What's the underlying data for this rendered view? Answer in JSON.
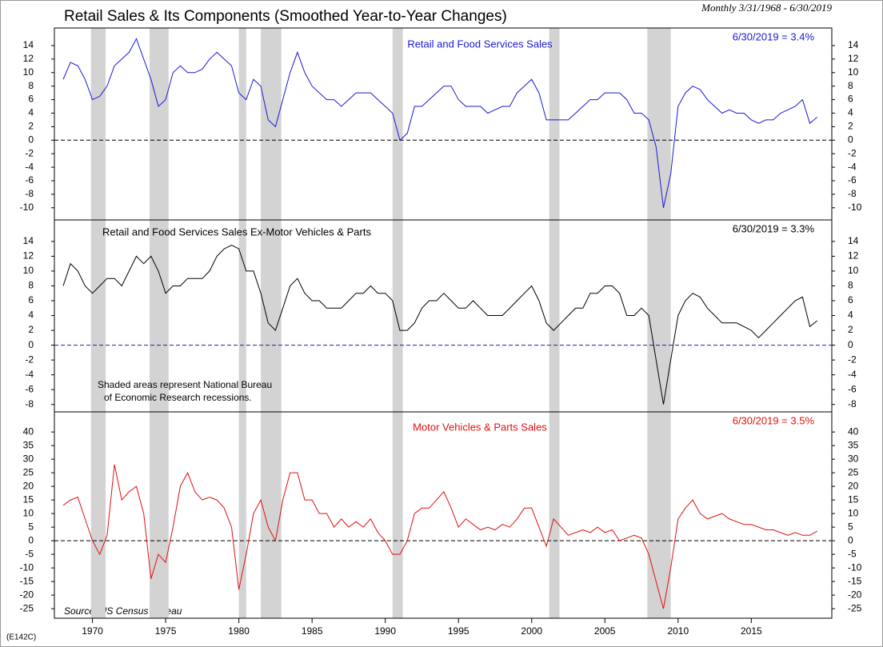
{
  "title": "Retail Sales & Its Components (Smoothed Year-to-Year Changes)",
  "subtitle": "Monthly 3/31/1968 - 6/30/2019",
  "source": "Source: US Census Bureau",
  "code": "(E142C)",
  "xlim": [
    1967.4,
    2020.5
  ],
  "xticks": [
    1970,
    1975,
    1980,
    1985,
    1990,
    1995,
    2000,
    2005,
    2010,
    2015
  ],
  "recession_color": "#d3d3d3",
  "recessions": [
    [
      1969.9,
      1970.9
    ],
    [
      1973.9,
      1975.2
    ],
    [
      1980.0,
      1980.5
    ],
    [
      1981.5,
      1982.9
    ],
    [
      1990.5,
      1991.2
    ],
    [
      2001.2,
      2001.9
    ],
    [
      2007.9,
      2009.5
    ]
  ],
  "chart_data": [
    {
      "type": "line",
      "annotation": "6/30/2019 = 3.4%",
      "zero_line_color": "#000000",
      "ylim": [
        -11.8,
        16.6
      ],
      "yticks": [
        -10,
        -8,
        -6,
        -4,
        -2,
        0,
        2,
        4,
        6,
        8,
        10,
        12,
        14
      ],
      "x": [
        1968,
        1968.5,
        1969,
        1969.5,
        1970,
        1970.5,
        1971,
        1971.5,
        1972,
        1972.5,
        1973,
        1973.5,
        1974,
        1974.5,
        1975,
        1975.5,
        1976,
        1976.5,
        1977,
        1977.5,
        1978,
        1978.5,
        1979,
        1979.5,
        1980,
        1980.5,
        1981,
        1981.5,
        1982,
        1982.5,
        1983,
        1983.5,
        1984,
        1984.5,
        1985,
        1985.5,
        1986,
        1986.5,
        1987,
        1987.5,
        1988,
        1988.5,
        1989,
        1989.5,
        1990,
        1990.5,
        1991,
        1991.5,
        1992,
        1992.5,
        1993,
        1993.5,
        1994,
        1994.5,
        1995,
        1995.5,
        1996,
        1996.5,
        1997,
        1997.5,
        1998,
        1998.5,
        1999,
        1999.5,
        2000,
        2000.5,
        2001,
        2001.5,
        2002,
        2002.5,
        2003,
        2003.5,
        2004,
        2004.5,
        2005,
        2005.5,
        2006,
        2006.5,
        2007,
        2007.5,
        2008,
        2008.5,
        2009,
        2009.5,
        2010,
        2010.5,
        2011,
        2011.5,
        2012,
        2012.5,
        2013,
        2013.5,
        2014,
        2014.5,
        2015,
        2015.5,
        2016,
        2016.5,
        2017,
        2017.5,
        2018,
        2018.5,
        2019,
        2019.5
      ],
      "series": [
        {
          "name": "Retail and Food Services Sales",
          "color": "#1a1ad6",
          "values": [
            9,
            11.5,
            11,
            9,
            6,
            6.5,
            8,
            11,
            12,
            13,
            15,
            12,
            9,
            5,
            6,
            10,
            11,
            10,
            10,
            10.5,
            12,
            13,
            12,
            11,
            7,
            6,
            9,
            8,
            3,
            2,
            6,
            10,
            13,
            10,
            8,
            7,
            6,
            6,
            5,
            6,
            7,
            7,
            7,
            6,
            5,
            4,
            0,
            1,
            5,
            5,
            6,
            7,
            8,
            8,
            6,
            5,
            5,
            5,
            4,
            4.5,
            5,
            5,
            7,
            8,
            9,
            7,
            3,
            3,
            3,
            3,
            4,
            5,
            6,
            6,
            7,
            7,
            7,
            6,
            4,
            4,
            3,
            -1,
            -10,
            -5,
            5,
            7,
            8,
            7.5,
            6,
            5,
            4,
            4.5,
            4,
            4,
            3,
            2.5,
            3,
            3,
            4,
            4.5,
            5,
            6,
            2.5,
            3.4
          ]
        }
      ]
    },
    {
      "type": "line",
      "annotation": "6/30/2019 = 3.3%",
      "zero_line_color": "#2020b0",
      "note": [
        "Shaded areas represent National Bureau",
        "of Economic Research recessions."
      ],
      "ylim": [
        -9,
        16.9
      ],
      "yticks": [
        -8,
        -6,
        -4,
        -2,
        0,
        2,
        4,
        6,
        8,
        10,
        12,
        14
      ],
      "x": [
        1968,
        1968.5,
        1969,
        1969.5,
        1970,
        1970.5,
        1971,
        1971.5,
        1972,
        1972.5,
        1973,
        1973.5,
        1974,
        1974.5,
        1975,
        1975.5,
        1976,
        1976.5,
        1977,
        1977.5,
        1978,
        1978.5,
        1979,
        1979.5,
        1980,
        1980.5,
        1981,
        1981.5,
        1982,
        1982.5,
        1983,
        1983.5,
        1984,
        1984.5,
        1985,
        1985.5,
        1986,
        1986.5,
        1987,
        1987.5,
        1988,
        1988.5,
        1989,
        1989.5,
        1990,
        1990.5,
        1991,
        1991.5,
        1992,
        1992.5,
        1993,
        1993.5,
        1994,
        1994.5,
        1995,
        1995.5,
        1996,
        1996.5,
        1997,
        1997.5,
        1998,
        1998.5,
        1999,
        1999.5,
        2000,
        2000.5,
        2001,
        2001.5,
        2002,
        2002.5,
        2003,
        2003.5,
        2004,
        2004.5,
        2005,
        2005.5,
        2006,
        2006.5,
        2007,
        2007.5,
        2008,
        2008.5,
        2009,
        2009.5,
        2010,
        2010.5,
        2011,
        2011.5,
        2012,
        2012.5,
        2013,
        2013.5,
        2014,
        2014.5,
        2015,
        2015.5,
        2016,
        2016.5,
        2017,
        2017.5,
        2018,
        2018.5,
        2019,
        2019.5
      ],
      "series": [
        {
          "name": "Retail and Food Services Sales Ex-Motor Vehicles & Parts",
          "color": "#000000",
          "values": [
            8,
            11,
            10,
            8,
            7,
            8,
            9,
            9,
            8,
            10,
            12,
            11,
            12,
            10,
            7,
            8,
            8,
            9,
            9,
            9,
            10,
            12,
            13,
            13.5,
            13,
            10,
            10,
            7,
            3,
            2,
            5,
            8,
            9,
            7,
            6,
            6,
            5,
            5,
            5,
            6,
            7,
            7,
            8,
            7,
            7,
            6,
            2,
            2,
            3,
            5,
            6,
            6,
            7,
            6,
            5,
            5,
            6,
            5,
            4,
            4,
            4,
            5,
            6,
            7,
            8,
            6,
            3,
            2,
            3,
            4,
            5,
            5,
            7,
            7,
            8,
            8,
            7,
            4,
            4,
            5,
            4,
            -2,
            -8,
            -2,
            4,
            6,
            7,
            6.5,
            5,
            4,
            3,
            3,
            3,
            2.5,
            2,
            1,
            2,
            3,
            4,
            5,
            6,
            6.5,
            2.5,
            3.3
          ]
        }
      ]
    },
    {
      "type": "line",
      "annotation": "6/30/2019 = 3.5%",
      "zero_line_color": "#000000",
      "ylim": [
        -28.5,
        47.4
      ],
      "yticks": [
        -25,
        -20,
        -15,
        -10,
        -5,
        0,
        5,
        10,
        15,
        20,
        25,
        30,
        35,
        40
      ],
      "x": [
        1968,
        1968.5,
        1969,
        1969.5,
        1970,
        1970.5,
        1971,
        1971.5,
        1972,
        1972.5,
        1973,
        1973.5,
        1974,
        1974.5,
        1975,
        1975.5,
        1976,
        1976.5,
        1977,
        1977.5,
        1978,
        1978.5,
        1979,
        1979.5,
        1980,
        1980.5,
        1981,
        1981.5,
        1982,
        1982.5,
        1983,
        1983.5,
        1984,
        1984.5,
        1985,
        1985.5,
        1986,
        1986.5,
        1987,
        1987.5,
        1988,
        1988.5,
        1989,
        1989.5,
        1990,
        1990.5,
        1991,
        1991.5,
        1992,
        1992.5,
        1993,
        1993.5,
        1994,
        1994.5,
        1995,
        1995.5,
        1996,
        1996.5,
        1997,
        1997.5,
        1998,
        1998.5,
        1999,
        1999.5,
        2000,
        2000.5,
        2001,
        2001.5,
        2002,
        2002.5,
        2003,
        2003.5,
        2004,
        2004.5,
        2005,
        2005.5,
        2006,
        2006.5,
        2007,
        2007.5,
        2008,
        2008.5,
        2009,
        2009.5,
        2010,
        2010.5,
        2011,
        2011.5,
        2012,
        2012.5,
        2013,
        2013.5,
        2014,
        2014.5,
        2015,
        2015.5,
        2016,
        2016.5,
        2017,
        2017.5,
        2018,
        2018.5,
        2019,
        2019.5
      ],
      "series": [
        {
          "name": "Motor Vehicles & Parts Sales",
          "color": "#e01010",
          "values": [
            13,
            15,
            16,
            8,
            0,
            -5,
            2,
            28,
            15,
            18,
            20,
            10,
            -14,
            -5,
            -8,
            5,
            20,
            25,
            18,
            15,
            16,
            15,
            12,
            5,
            -18,
            -5,
            10,
            15,
            5,
            0,
            15,
            25,
            25,
            15,
            15,
            10,
            10,
            5,
            8,
            5,
            7,
            5,
            8,
            3,
            0,
            -5,
            -5,
            0,
            10,
            12,
            12,
            15,
            18,
            12,
            5,
            8,
            6,
            4,
            5,
            4,
            6,
            5,
            8,
            12,
            12,
            5,
            -2,
            8,
            5,
            2,
            3,
            4,
            3,
            5,
            3,
            4,
            0,
            1,
            2,
            1,
            -5,
            -15,
            -25,
            -10,
            8,
            12,
            15,
            10,
            8,
            9,
            10,
            8,
            7,
            6,
            6,
            5,
            4,
            4,
            3,
            2,
            3,
            2,
            2,
            3.5
          ]
        }
      ]
    }
  ]
}
